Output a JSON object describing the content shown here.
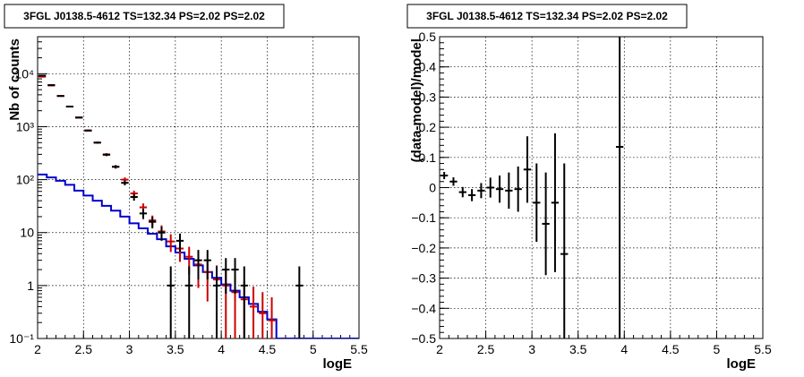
{
  "chart_data": [
    {
      "type": "step",
      "title": "3FGL J0138.5-4612 TS=132.34 PS=2.02 PS=2.02",
      "xlabel": "logE",
      "ylabel": "Nb of counts",
      "log_y": true,
      "xlim": [
        2,
        5.5
      ],
      "ylim": [
        0.1,
        50000
      ],
      "grid": true,
      "x_ticks": [
        "2",
        "2.5",
        "3",
        "3.5",
        "4",
        "4.5",
        "5",
        "5.5"
      ],
      "y_ticks": [
        "10⁻¹",
        "1",
        "10",
        "10²",
        "10³",
        "10⁴"
      ],
      "model_total": {
        "color": "#cc0000",
        "bin_width": 0.1,
        "x": [
          2.05,
          2.15,
          2.25,
          2.35,
          2.45,
          2.55,
          2.65,
          2.75,
          2.85,
          2.95,
          3.05,
          3.15,
          3.25,
          3.35,
          3.45,
          3.55,
          3.65,
          3.75,
          3.85,
          3.95,
          4.05,
          4.15,
          4.25,
          4.35,
          4.45,
          4.55
        ],
        "y": [
          8800,
          6000,
          3800,
          2400,
          1500,
          840,
          500,
          300,
          175,
          100,
          55,
          30,
          17,
          10.5,
          6.8,
          5,
          3.5,
          2.5,
          1.8,
          1.3,
          1.0,
          0.75,
          0.55,
          0.4,
          0.3,
          0.22
        ],
        "err": [
          300,
          200,
          120,
          70,
          45,
          30,
          20,
          15,
          12,
          10,
          7,
          5.5,
          4,
          3.2,
          2.5,
          2.2,
          1.9,
          1.6,
          1.3,
          1.1,
          0.95,
          0.8,
          0.65,
          0.55,
          0.45,
          0.38
        ]
      },
      "model_source": {
        "color": "#0000cc",
        "bin_width": 0.1,
        "x": [
          2.05,
          2.15,
          2.25,
          2.35,
          2.45,
          2.55,
          2.65,
          2.75,
          2.85,
          2.95,
          3.05,
          3.15,
          3.25,
          3.35,
          3.45,
          3.55,
          3.65,
          3.75,
          3.85,
          3.95,
          4.05,
          4.15,
          4.25,
          4.35,
          4.45,
          4.55,
          4.65,
          4.75,
          4.85,
          4.95,
          5.05,
          5.15,
          5.25,
          5.35,
          5.45
        ],
        "y": [
          125,
          110,
          95,
          80,
          62,
          50,
          40,
          32,
          26,
          20,
          15,
          12,
          9.5,
          7.5,
          5.5,
          4.2,
          3.2,
          2.4,
          1.8,
          1.4,
          1.05,
          0.8,
          0.6,
          0.45,
          0.32,
          0.23,
          0.1,
          0.1,
          0.1,
          0.1,
          0.1,
          0.1,
          0.1,
          0.1,
          0.1
        ]
      },
      "data_points": {
        "color": "#000000",
        "x": [
          2.05,
          2.15,
          2.25,
          2.35,
          2.45,
          2.55,
          2.65,
          2.75,
          2.85,
          2.95,
          3.05,
          3.15,
          3.25,
          3.35,
          3.45,
          3.55,
          3.65,
          3.75,
          3.85,
          3.95,
          4.05,
          4.15,
          4.25,
          4.85
        ],
        "y": [
          9200,
          6100,
          3800,
          2400,
          1480,
          850,
          500,
          295,
          175,
          87,
          47,
          23,
          16,
          10,
          1,
          7,
          1,
          3,
          3,
          1,
          2,
          2,
          1,
          1
        ],
        "err_lo": [
          95,
          78,
          60,
          48,
          38,
          29,
          22,
          17,
          13,
          9,
          7,
          5,
          4,
          3,
          0.9,
          2.6,
          0.9,
          1.7,
          1.7,
          0.9,
          1.3,
          1.3,
          0.9,
          0.9
        ],
        "err_hi": [
          95,
          78,
          60,
          48,
          38,
          29,
          22,
          17,
          13,
          9,
          7,
          5,
          4,
          3,
          1.3,
          2.6,
          1.3,
          1.7,
          1.7,
          1.3,
          1.3,
          1.3,
          1.3,
          1.3
        ]
      }
    },
    {
      "type": "scatter",
      "title": "3FGL J0138.5-4612 TS=132.34 PS=2.02 PS=2.02",
      "xlabel": "logE",
      "ylabel": "(data-model)/model",
      "xlim": [
        2,
        5.5
      ],
      "ylim": [
        -0.5,
        0.5
      ],
      "grid": true,
      "x_ticks": [
        "2",
        "2.5",
        "3",
        "3.5",
        "4",
        "4.5",
        "5",
        "5.5"
      ],
      "y_ticks": [
        "−0.5",
        "−0.4",
        "−0.3",
        "−0.2",
        "−0.1",
        "0",
        "0.1",
        "0.2",
        "0.3",
        "0.4",
        "0.5"
      ],
      "residuals": {
        "color": "#000000",
        "x": [
          2.05,
          2.15,
          2.25,
          2.35,
          2.45,
          2.55,
          2.65,
          2.75,
          2.85,
          2.95,
          3.05,
          3.15,
          3.25,
          3.35,
          3.95
        ],
        "y": [
          0.04,
          0.02,
          -0.015,
          -0.025,
          -0.01,
          0.0,
          -0.005,
          -0.01,
          -0.005,
          0.06,
          -0.05,
          -0.12,
          -0.05,
          -0.22,
          0.135
        ],
        "err": [
          0.012,
          0.014,
          0.017,
          0.02,
          0.025,
          0.033,
          0.045,
          0.06,
          0.075,
          0.11,
          0.13,
          0.17,
          0.23,
          0.3,
          0.7
        ]
      }
    }
  ]
}
